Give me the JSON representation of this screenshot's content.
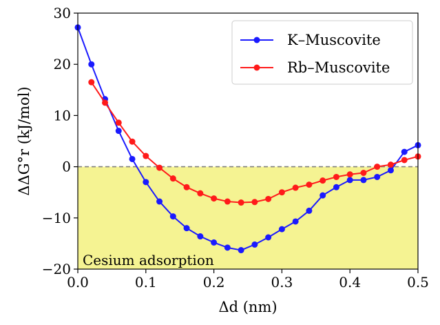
{
  "chart_data": {
    "type": "line",
    "xlabel": "Δd (nm)",
    "ylabel": "ΔΔG°r (kJ/mol)",
    "xlim": [
      0.0,
      0.5
    ],
    "ylim": [
      -20,
      30
    ],
    "xticks": [
      0.0,
      0.1,
      0.2,
      0.3,
      0.4,
      0.5
    ],
    "xtick_labels": [
      "0.0",
      "0.1",
      "0.2",
      "0.3",
      "0.4",
      "0.5"
    ],
    "yticks": [
      -20,
      -10,
      0,
      10,
      20,
      30
    ],
    "ytick_labels": [
      "−20",
      "−10",
      "0",
      "10",
      "20",
      "30"
    ],
    "grid": false,
    "legend_position": "top-right",
    "reference_line": {
      "y": 0,
      "style": "dashed",
      "color": "#808080"
    },
    "shaded_region": {
      "y_from": -20,
      "y_to": 0,
      "color": "#f5f392",
      "label": "Cesium adsorption"
    },
    "series": [
      {
        "name": "K–Muscovite",
        "color": "#1a1aff",
        "x": [
          0.0,
          0.02,
          0.04,
          0.06,
          0.08,
          0.1,
          0.12,
          0.14,
          0.16,
          0.18,
          0.2,
          0.22,
          0.24,
          0.26,
          0.28,
          0.3,
          0.32,
          0.34,
          0.36,
          0.38,
          0.4,
          0.42,
          0.44,
          0.46,
          0.48,
          0.5
        ],
        "y": [
          27.2,
          20.0,
          13.2,
          7.0,
          1.5,
          -3.0,
          -6.8,
          -9.7,
          -12.0,
          -13.6,
          -14.8,
          -15.8,
          -16.3,
          -15.2,
          -13.8,
          -12.2,
          -10.7,
          -8.6,
          -5.6,
          -4.0,
          -2.6,
          -2.6,
          -2.0,
          -0.7,
          2.9,
          4.2
        ]
      },
      {
        "name": "Rb–Muscovite",
        "color": "#ff1a1a",
        "x": [
          0.02,
          0.04,
          0.06,
          0.08,
          0.1,
          0.12,
          0.14,
          0.16,
          0.18,
          0.2,
          0.22,
          0.24,
          0.26,
          0.28,
          0.3,
          0.32,
          0.34,
          0.36,
          0.38,
          0.4,
          0.42,
          0.44,
          0.46,
          0.48,
          0.5
        ],
        "y": [
          16.5,
          12.5,
          8.6,
          4.9,
          2.1,
          -0.2,
          -2.3,
          -4.0,
          -5.2,
          -6.2,
          -6.8,
          -7.0,
          -6.9,
          -6.3,
          -5.0,
          -4.1,
          -3.5,
          -2.7,
          -2.0,
          -1.5,
          -1.2,
          0.0,
          0.4,
          1.3,
          2.0
        ]
      }
    ]
  }
}
